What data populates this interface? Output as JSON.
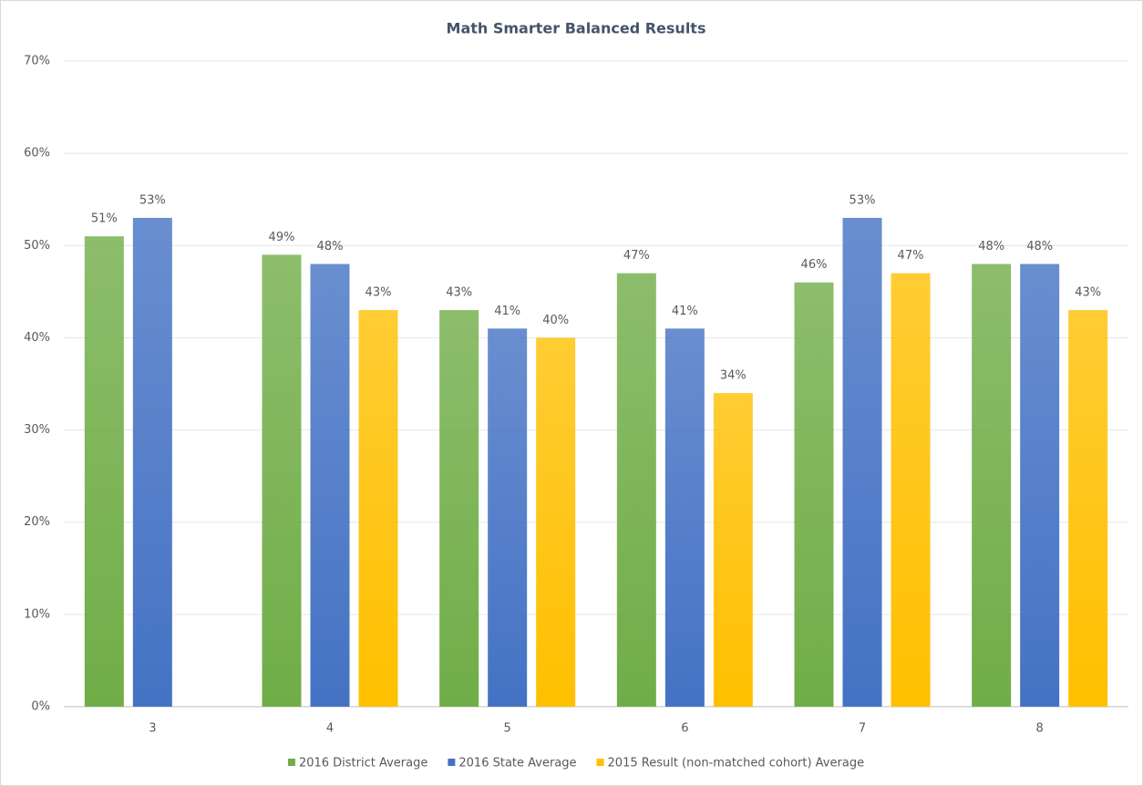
{
  "chart_data": {
    "type": "bar",
    "title": "Math Smarter Balanced Results",
    "categories": [
      "3",
      "4",
      "5",
      "6",
      "7",
      "8"
    ],
    "series": [
      {
        "name": "2016 District Average",
        "color": "#70ad47",
        "values": [
          51,
          49,
          43,
          47,
          46,
          48
        ],
        "value_labels": [
          "51%",
          "49%",
          "43%",
          "47%",
          "46%",
          "48%"
        ]
      },
      {
        "name": "2016 State Average",
        "color": "#4472c4",
        "values": [
          53,
          48,
          41,
          41,
          53,
          48
        ],
        "value_labels": [
          "53%",
          "48%",
          "41%",
          "41%",
          "53%",
          "48%"
        ]
      },
      {
        "name": "2015 Result (non-matched cohort) Average",
        "color": "#ffc000",
        "values": [
          null,
          43,
          40,
          34,
          47,
          43
        ],
        "value_labels": [
          null,
          "43%",
          "40%",
          "34%",
          "47%",
          "43%"
        ]
      }
    ],
    "ylim": [
      0,
      70
    ],
    "yticks": [
      {
        "value": 0,
        "label": "0%"
      },
      {
        "value": 10,
        "label": "10%"
      },
      {
        "value": 20,
        "label": "20%"
      },
      {
        "value": 30,
        "label": "30%"
      },
      {
        "value": 40,
        "label": "40%"
      },
      {
        "value": 50,
        "label": "50%"
      },
      {
        "value": 60,
        "label": "60%"
      },
      {
        "value": 70,
        "label": "70%"
      }
    ],
    "grid": true,
    "legend": "bottom"
  }
}
